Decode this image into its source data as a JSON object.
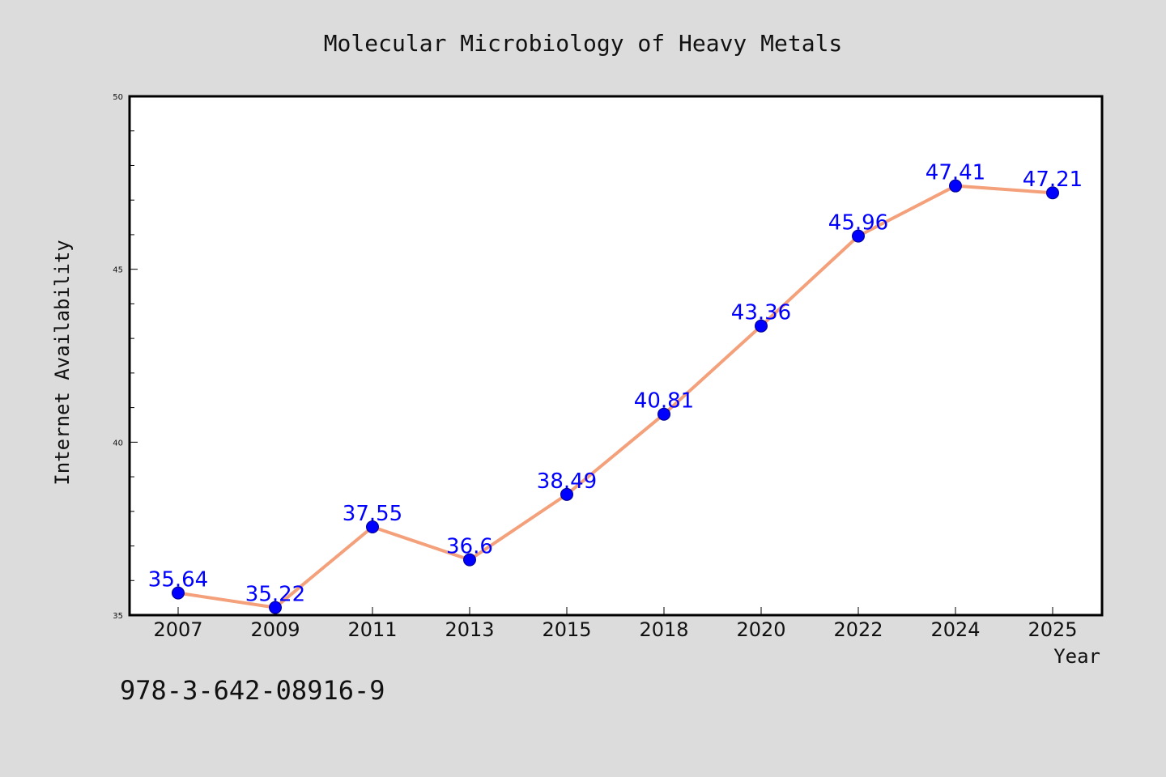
{
  "chart_data": {
    "type": "line",
    "title": "Molecular Microbiology of Heavy Metals",
    "xlabel": "Year",
    "ylabel": "Internet Availability",
    "categories": [
      "2007",
      "2009",
      "2011",
      "2013",
      "2015",
      "2018",
      "2020",
      "2022",
      "2024",
      "2025"
    ],
    "series": [
      {
        "values": [
          35.64,
          35.22,
          37.55,
          36.6,
          38.49,
          40.81,
          43.36,
          45.96,
          47.41,
          47.21
        ],
        "labels": [
          "35.64",
          "35.22",
          "37.55",
          "36.6",
          "38.49",
          "40.81",
          "43.36",
          "45.96",
          "47.41",
          "47.21"
        ]
      }
    ],
    "ylim": [
      35,
      50
    ],
    "yticks": [
      "35",
      "40",
      "45",
      "50"
    ],
    "grid": false,
    "legend": "none",
    "colors": {
      "line": "#f4a07a",
      "marker": "#0000ff",
      "label": "#0000ff",
      "background": "#dcdcdc",
      "plot_bg": "#ffffff"
    }
  },
  "footer": {
    "isbn": "978-3-642-08916-9"
  }
}
